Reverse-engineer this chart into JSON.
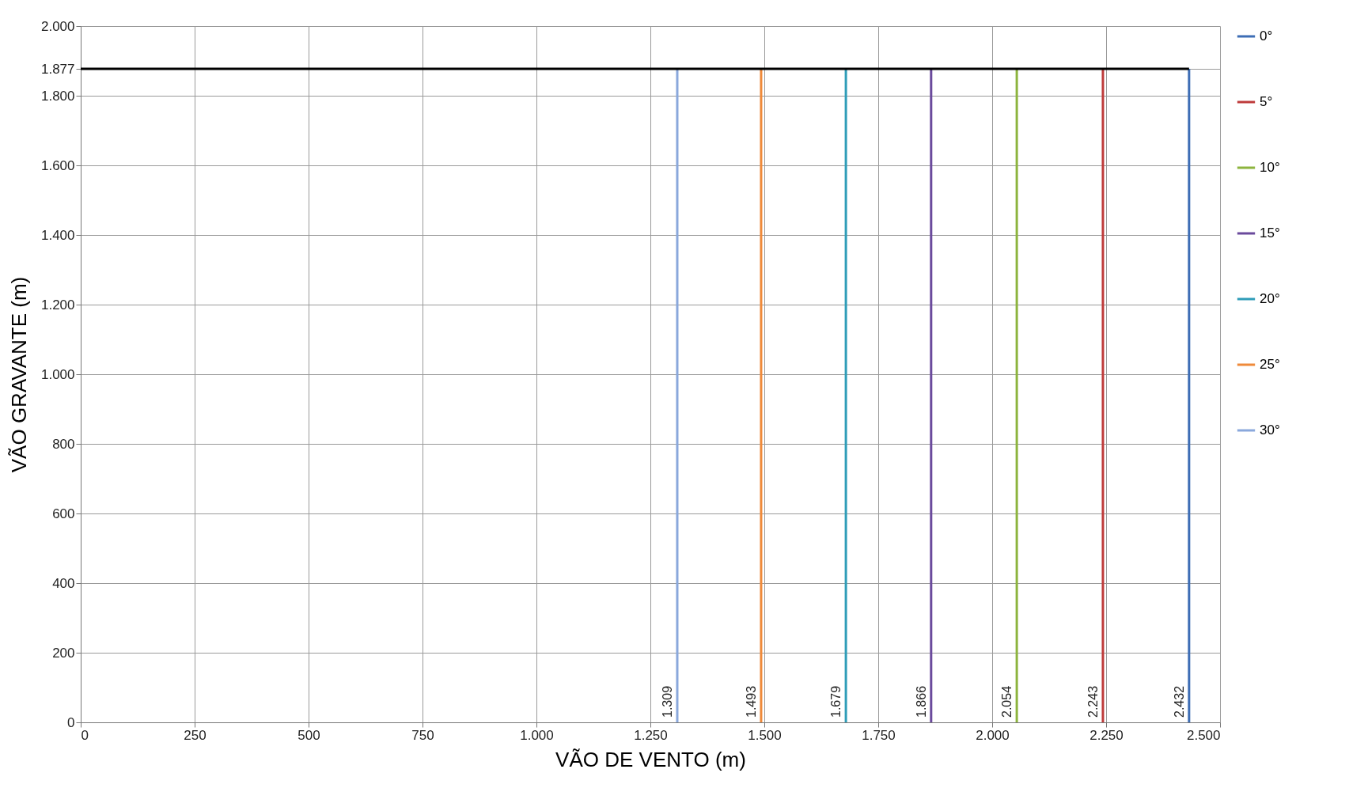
{
  "chart_data": {
    "type": "line",
    "xlabel": "VÃO DE VENTO (m)",
    "ylabel": "VÃO GRAVANTE (m)",
    "xlim": [
      0,
      2500
    ],
    "ylim": [
      0,
      2000
    ],
    "xticks": [
      0,
      250,
      500,
      750,
      {
        "value": 1000,
        "label": "1.000"
      },
      {
        "value": 1250,
        "label": "1.250"
      },
      {
        "value": 1500,
        "label": "1.500"
      },
      {
        "value": 1750,
        "label": "1.750"
      },
      {
        "value": 2000,
        "label": "2.000"
      },
      {
        "value": 2250,
        "label": "2.250"
      },
      {
        "value": 2500,
        "label": "2.500"
      }
    ],
    "yticks": [
      0,
      200,
      400,
      600,
      800,
      {
        "value": 1000,
        "label": "1.000"
      },
      {
        "value": 1200,
        "label": "1.200"
      },
      {
        "value": 1400,
        "label": "1.400"
      },
      {
        "value": 1600,
        "label": "1.600"
      },
      {
        "value": 1800,
        "label": "1.800"
      },
      {
        "value": 1877,
        "label": "1.877"
      },
      {
        "value": 2000,
        "label": "2.000"
      }
    ],
    "grid": true,
    "legend": "right",
    "marker": "none",
    "line_style": "solid",
    "series": [
      {
        "name": "0°",
        "color": "#3d6db5",
        "x": [
          2432,
          2432
        ],
        "values": [
          0,
          1877
        ]
      },
      {
        "name": "5°",
        "color": "#be3b3b",
        "x": [
          2243,
          2243
        ],
        "values": [
          0,
          1877
        ]
      },
      {
        "name": "10°",
        "color": "#8db43e",
        "x": [
          2054,
          2054
        ],
        "values": [
          0,
          1877
        ]
      },
      {
        "name": "15°",
        "color": "#6a4a9c",
        "x": [
          1866,
          1866
        ],
        "values": [
          0,
          1877
        ]
      },
      {
        "name": "20°",
        "color": "#2f9db8",
        "x": [
          1679,
          1679
        ],
        "values": [
          0,
          1877
        ]
      },
      {
        "name": "25°",
        "color": "#ef8a3a",
        "x": [
          1493,
          1493
        ],
        "values": [
          0,
          1877
        ]
      },
      {
        "name": "30°",
        "color": "#8aa8dc",
        "x": [
          1309,
          1309
        ],
        "values": [
          0,
          1877
        ]
      },
      {
        "color": "#000000",
        "x": [
          0,
          2432
        ],
        "values": [
          1877,
          1877
        ]
      }
    ],
    "annotations": [
      {
        "text": "1.309",
        "x": 1309,
        "y": 0
      },
      {
        "text": "1.493",
        "x": 1493,
        "y": 0
      },
      {
        "text": "1.679",
        "x": 1679,
        "y": 0
      },
      {
        "text": "1.866",
        "x": 1866,
        "y": 0
      },
      {
        "text": "2.054",
        "x": 2054,
        "y": 0
      },
      {
        "text": "2.243",
        "x": 2243,
        "y": 0
      },
      {
        "text": "2.432",
        "x": 2432,
        "y": 0
      }
    ]
  }
}
